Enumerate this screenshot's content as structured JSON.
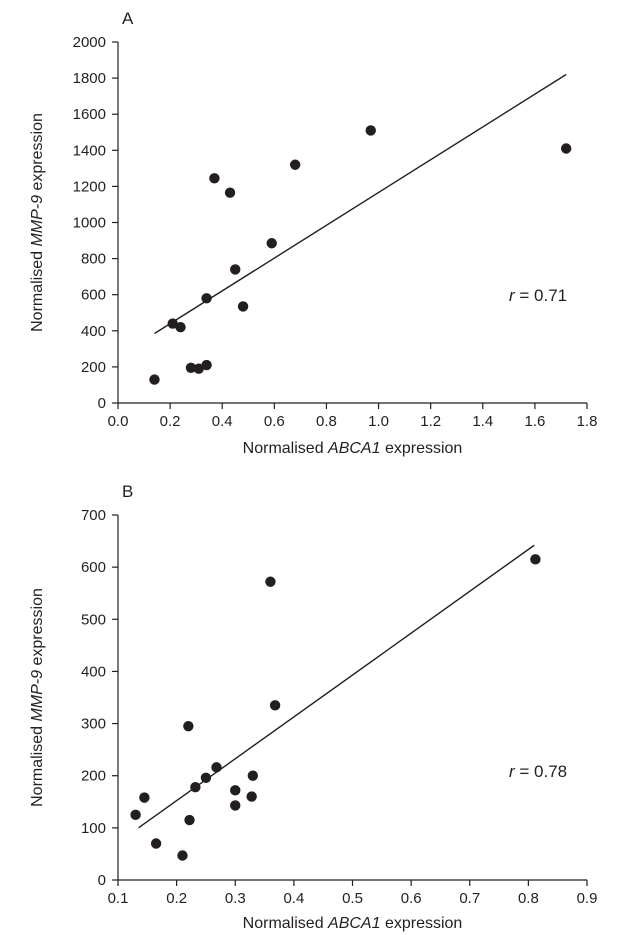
{
  "figure": {
    "bg": "#ffffff",
    "ink": "#231f20"
  },
  "chart_data": [
    {
      "type": "scatter",
      "panel": "A",
      "xlabel_pre": "Normalised ",
      "xlabel_gene": "ABCA1",
      "xlabel_post": " expression",
      "ylabel_pre": "Normalised ",
      "ylabel_gene": "MMP-9",
      "ylabel_post": " expression",
      "xlim": [
        0.0,
        1.8
      ],
      "ylim": [
        0,
        2000
      ],
      "xticks": [
        "0.0",
        "0.2",
        "0.4",
        "0.6",
        "0.8",
        "1.0",
        "1.2",
        "1.4",
        "1.6",
        "1.8"
      ],
      "yticks": [
        "0",
        "200",
        "400",
        "600",
        "800",
        "1000",
        "1200",
        "1400",
        "1600",
        "1800",
        "2000"
      ],
      "points": [
        [
          0.14,
          130
        ],
        [
          0.21,
          440
        ],
        [
          0.24,
          420
        ],
        [
          0.28,
          195
        ],
        [
          0.31,
          190
        ],
        [
          0.34,
          580
        ],
        [
          0.34,
          210
        ],
        [
          0.37,
          1245
        ],
        [
          0.43,
          1165
        ],
        [
          0.45,
          740
        ],
        [
          0.48,
          535
        ],
        [
          0.59,
          885
        ],
        [
          0.68,
          1320
        ],
        [
          0.97,
          1510
        ],
        [
          1.72,
          1410
        ]
      ],
      "fit_line": [
        [
          0.14,
          385
        ],
        [
          1.72,
          1820
        ]
      ],
      "r_prefix": "r",
      "r_value": " = 0.71"
    },
    {
      "type": "scatter",
      "panel": "B",
      "xlabel_pre": "Normalised ",
      "xlabel_gene": "ABCA1",
      "xlabel_post": " expression",
      "ylabel_pre": "Normalised ",
      "ylabel_gene": "MMP-9",
      "ylabel_post": " expression",
      "xlim": [
        0.1,
        0.9
      ],
      "ylim": [
        0,
        700
      ],
      "xticks": [
        "0.1",
        "0.2",
        "0.3",
        "0.4",
        "0.5",
        "0.6",
        "0.7",
        "0.8",
        "0.9"
      ],
      "yticks": [
        "0",
        "100",
        "200",
        "300",
        "400",
        "500",
        "600",
        "700"
      ],
      "points": [
        [
          0.13,
          125
        ],
        [
          0.145,
          158
        ],
        [
          0.165,
          70
        ],
        [
          0.21,
          47
        ],
        [
          0.22,
          295
        ],
        [
          0.222,
          115
        ],
        [
          0.232,
          178
        ],
        [
          0.25,
          196
        ],
        [
          0.268,
          216
        ],
        [
          0.3,
          172
        ],
        [
          0.3,
          143
        ],
        [
          0.328,
          160
        ],
        [
          0.33,
          200
        ],
        [
          0.36,
          572
        ],
        [
          0.368,
          335
        ],
        [
          0.812,
          615
        ]
      ],
      "fit_line": [
        [
          0.135,
          100
        ],
        [
          0.81,
          642
        ]
      ],
      "r_prefix": "r",
      "r_value": " = 0.78"
    }
  ]
}
